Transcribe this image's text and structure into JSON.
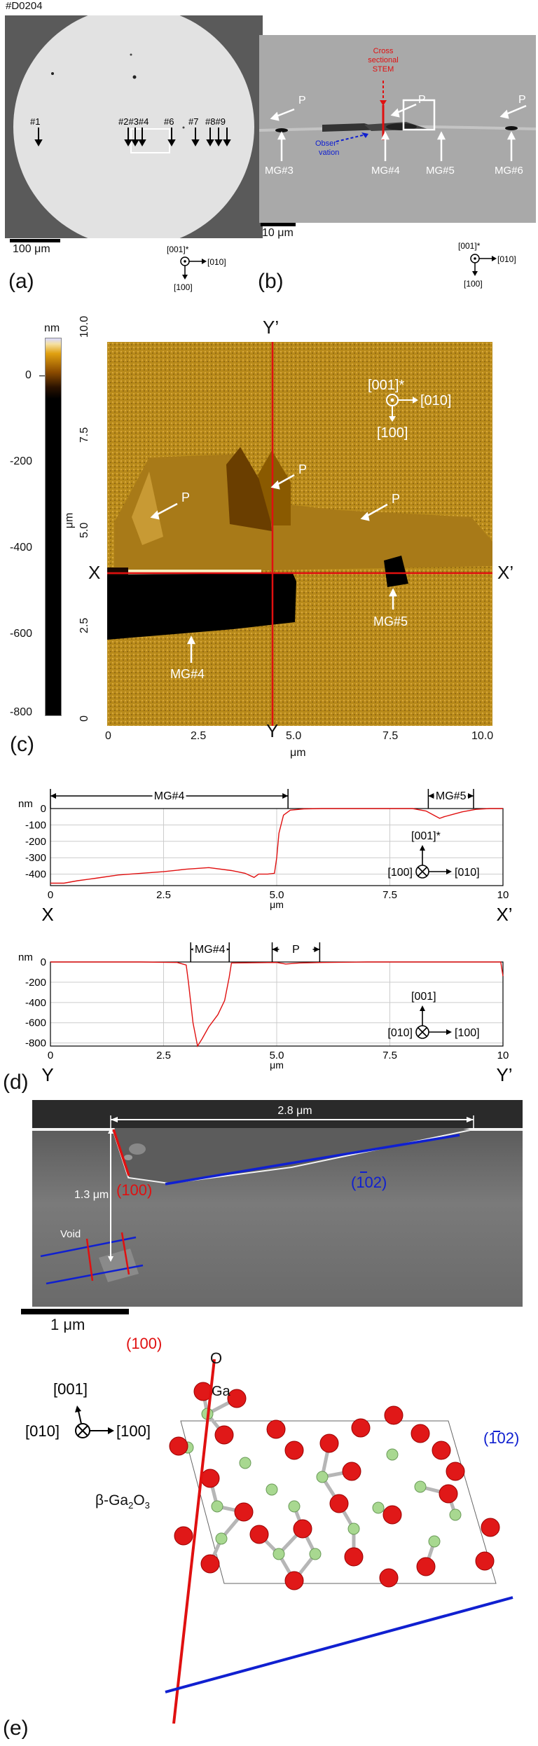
{
  "figure": {
    "sample_id": "#D0204",
    "panel_a": {
      "letter": "(a)",
      "markers": [
        "#1",
        "#2#3#4",
        "#6",
        "#7",
        "#8#9"
      ],
      "scale_bar": "100 μm",
      "axes": {
        "out": "[001]*",
        "right": "[010]",
        "down": "[100]"
      }
    },
    "panel_b": {
      "letter": "(b)",
      "stem_label": [
        "Cross",
        "sectional",
        "STEM"
      ],
      "observation_label": [
        "Obser-",
        "vation"
      ],
      "labels": {
        "p": "P",
        "mg3": "MG#3",
        "mg4": "MG#4",
        "mg5": "MG#5",
        "mg6": "MG#6"
      },
      "scale_bar": "10 μm",
      "axes": {
        "out": "[001]*",
        "right": "[010]",
        "down": "[100]"
      }
    },
    "panel_c": {
      "letter": "(c)",
      "colorbar_unit": "nm",
      "colorbar_ticks": [
        "0",
        "-200",
        "-400",
        "-600",
        "-800"
      ],
      "y_ticks": [
        "0",
        "2.5",
        "5.0",
        "7.5",
        "10.0"
      ],
      "x_ticks": [
        "0",
        "2.5",
        "5.0",
        "7.5",
        "10.0"
      ],
      "y_label": "μm",
      "x_label": "μm",
      "line_labels": {
        "x_start": "X",
        "x_end": "X’",
        "y_start": "Y",
        "y_end": "Y’"
      },
      "labels": {
        "p": "P",
        "mg4": "MG#4",
        "mg5": "MG#5"
      },
      "axes": {
        "out": "[001]*",
        "right": "[010]",
        "down": "[100]"
      }
    },
    "panel_d": {
      "letter": "(d)",
      "chart_data": [
        {
          "type": "line",
          "ylabel": "nm",
          "xlabel": "μm",
          "xlim": [
            0,
            10
          ],
          "ylim": [
            -470,
            0
          ],
          "x_ticks": [
            "0",
            "2.5",
            "5.0",
            "7.5",
            "10"
          ],
          "y_ticks": [
            "0",
            "-100",
            "-200",
            "-300",
            "-400"
          ],
          "end_labels": [
            "X",
            "X’"
          ],
          "annotations": [
            {
              "label": "MG#4",
              "from": 0,
              "to": 5.25
            },
            {
              "label": "MG#5",
              "from": 8.35,
              "to": 9.35
            }
          ],
          "axes": {
            "up": "[001]*",
            "in": "[100]",
            "right": "[010]"
          },
          "series": [
            {
              "x": [
                0,
                0.3,
                0.6,
                1.0,
                1.5,
                2.0,
                2.5,
                3.0,
                3.5,
                4.0,
                4.3,
                4.5,
                4.6,
                4.8,
                4.95,
                5.0,
                5.05,
                5.15,
                5.3,
                5.6,
                6.0,
                7.0,
                8.0,
                8.3,
                8.5,
                8.6,
                8.7,
                8.9,
                9.1,
                9.4,
                9.7,
                10.0
              ],
              "y": [
                -455,
                -455,
                -440,
                -425,
                -405,
                -395,
                -385,
                -370,
                -360,
                -378,
                -395,
                -420,
                -400,
                -400,
                -395,
                -300,
                -150,
                -40,
                -10,
                -2,
                0,
                0,
                0,
                -15,
                -45,
                -60,
                -50,
                -35,
                -20,
                -5,
                0,
                0
              ]
            }
          ]
        },
        {
          "type": "line",
          "ylabel": "nm",
          "xlabel": "μm",
          "xlim": [
            0,
            10
          ],
          "ylim": [
            -830,
            0
          ],
          "x_ticks": [
            "0",
            "2.5",
            "5.0",
            "7.5",
            "10"
          ],
          "y_ticks": [
            "0",
            "-200",
            "-400",
            "-600",
            "-800"
          ],
          "end_labels": [
            "Y",
            "Y’"
          ],
          "annotations": [
            {
              "label": "MG#4",
              "from": 3.1,
              "to": 3.95
            },
            {
              "label": "P",
              "from": 4.9,
              "to": 5.95
            }
          ],
          "axes": {
            "up": "[001]",
            "in": "[010]",
            "right": "[100]"
          },
          "series": [
            {
              "x": [
                0,
                1.0,
                2.0,
                2.8,
                3.0,
                3.05,
                3.15,
                3.25,
                3.35,
                3.5,
                3.7,
                3.85,
                3.95,
                4.0,
                5.0,
                5.2,
                5.5,
                6.0,
                7.0,
                8.0,
                9.0,
                9.95,
                10.0
              ],
              "y": [
                0,
                0,
                0,
                -5,
                -30,
                -200,
                -600,
                -830,
                -760,
                -640,
                -520,
                -380,
                -150,
                -10,
                -5,
                -20,
                -10,
                -5,
                0,
                0,
                0,
                0,
                -140
              ]
            }
          ]
        }
      ]
    },
    "panel_e": {
      "letter": "(e)",
      "width_label": "2.8 μm",
      "depth_label": "1.3 μm",
      "plane_100": "(100)",
      "plane_102": "(102)",
      "void_label": "Void",
      "scale_bar": "1 μm",
      "atom_o": "O",
      "atom_ga": "Ga",
      "crystal_label": "β-Ga",
      "crystal_sub": "2",
      "crystal_o": "O",
      "crystal_sub2": "3",
      "axes": {
        "up": "[001]",
        "in": "[010]",
        "right": "[100]"
      },
      "colors": {
        "red_plane": "#e01010",
        "blue_plane": "#1020d0"
      }
    }
  }
}
